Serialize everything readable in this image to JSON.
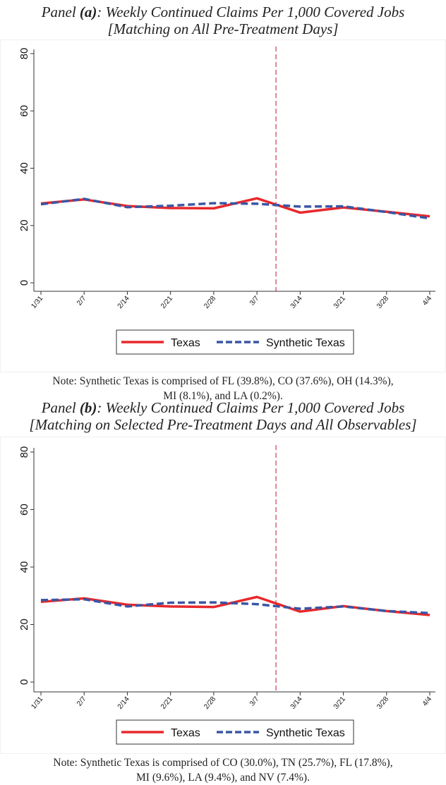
{
  "chart_data": [
    {
      "type": "line",
      "title_prefix": "Panel ",
      "title_label": "(a)",
      "title_main": ": Weekly Continued Claims Per 1,000 Covered Jobs",
      "subtitle": "[Matching on All Pre-Treatment Days]",
      "categories": [
        "1/31",
        "2/7",
        "2/14",
        "2/21",
        "2/28",
        "3/7",
        "3/14",
        "3/21",
        "3/28",
        "4/4"
      ],
      "series": [
        {
          "name": "Texas",
          "color": "#e8282b",
          "style": "solid",
          "values": [
            27.7,
            29.1,
            26.8,
            26.1,
            26.0,
            29.5,
            24.5,
            26.3,
            24.8,
            23.2
          ]
        },
        {
          "name": "Synthetic Texas",
          "color": "#3a56a4",
          "style": "dashed",
          "values": [
            27.4,
            29.3,
            26.4,
            26.9,
            27.8,
            27.6,
            26.6,
            26.7,
            24.7,
            22.5
          ]
        }
      ],
      "ylim": [
        0,
        80
      ],
      "yticks": [
        "0",
        "20",
        "40",
        "60",
        "80"
      ],
      "treatment_line_x_index": 5.44,
      "treatment_line_color": "#c8102e",
      "legend": [
        "Texas",
        "Synthetic Texas"
      ],
      "legend_placement": "bottom",
      "note_line1": "Note: Synthetic Texas is comprised of FL (39.8%), CO (37.6%), OH (14.3%),",
      "note_line2": "MI (8.1%), and LA (0.2%)."
    },
    {
      "type": "line",
      "title_prefix": "Panel ",
      "title_label": "(b)",
      "title_main": ": Weekly Continued Claims Per 1,000 Covered Jobs",
      "subtitle": "[Matching on Selected Pre-Treatment Days and All Observables]",
      "categories": [
        "1/31",
        "2/7",
        "2/14",
        "2/21",
        "2/28",
        "3/7",
        "3/14",
        "3/21",
        "3/28",
        "4/4"
      ],
      "series": [
        {
          "name": "Texas",
          "color": "#e8282b",
          "style": "solid",
          "values": [
            27.9,
            29.1,
            26.9,
            26.3,
            26.1,
            29.6,
            24.5,
            26.4,
            24.7,
            23.3
          ]
        },
        {
          "name": "Synthetic Texas",
          "color": "#3a56a4",
          "style": "dashed",
          "values": [
            28.5,
            28.8,
            26.3,
            27.6,
            27.7,
            27.1,
            25.5,
            26.3,
            24.7,
            24.0
          ]
        }
      ],
      "ylim": [
        0,
        80
      ],
      "yticks": [
        "0",
        "20",
        "40",
        "60",
        "80"
      ],
      "treatment_line_x_index": 5.44,
      "treatment_line_color": "#c8102e",
      "legend": [
        "Texas",
        "Synthetic Texas"
      ],
      "legend_placement": "bottom",
      "note_line1": "Note: Synthetic Texas is comprised of CO (30.0%), TN (25.7%), FL (17.8%),",
      "note_line2": "MI (9.6%), LA (9.4%), and NV (7.4%)."
    }
  ]
}
